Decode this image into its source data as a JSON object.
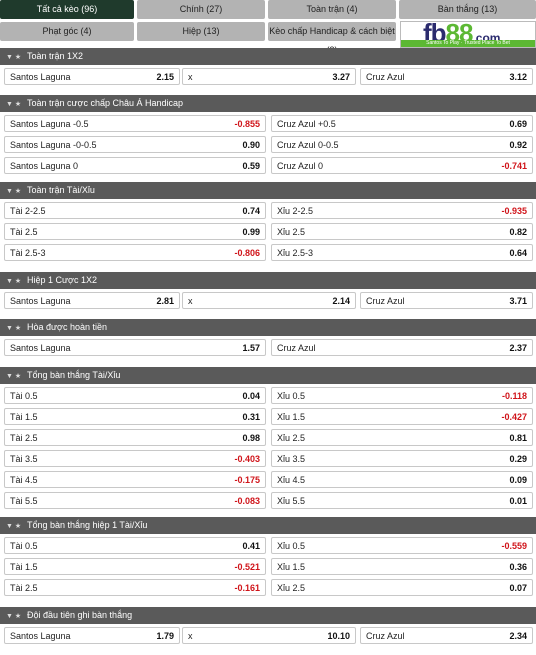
{
  "tabs": [
    {
      "label": "Tất cả kèo (96)",
      "active": true
    },
    {
      "label": "Chính (27)",
      "active": false
    },
    {
      "label": "Toàn trận (4)",
      "active": false
    },
    {
      "label": "Bàn thắng (13)",
      "active": false
    },
    {
      "label": "Phạt góc (4)",
      "active": false
    },
    {
      "label": "Hiệp (13)",
      "active": false
    },
    {
      "label": "Kèo chấp Handicap & cách biệt (3)",
      "active": false
    }
  ],
  "logo": {
    "brand_a": "fb",
    "brand_b": "88",
    "suffix": ".com",
    "tagline": "Santos To Play · Trusted Place To Bet"
  },
  "sections": [
    {
      "title": "Toàn trận 1X2",
      "rows": [
        [
          {
            "label": "Santos Laguna",
            "odd": "2.15"
          },
          {
            "label": "x",
            "odd": "3.27"
          },
          {
            "label": "Cruz Azul",
            "odd": "3.12"
          }
        ]
      ]
    },
    {
      "title": "Toàn trận cược chấp Châu Á Handicap",
      "rows": [
        [
          {
            "label": "Santos Laguna -0.5",
            "odd": "-0.855"
          },
          {
            "label": "Cruz Azul +0.5",
            "odd": "0.69"
          }
        ],
        [
          {
            "label": "Santos Laguna -0-0.5",
            "odd": "0.90"
          },
          {
            "label": "Cruz Azul 0-0.5",
            "odd": "0.92"
          }
        ],
        [
          {
            "label": "Santos Laguna 0",
            "odd": "0.59"
          },
          {
            "label": "Cruz Azul 0",
            "odd": "-0.741"
          }
        ]
      ]
    },
    {
      "title": "Toàn trận Tài/Xỉu",
      "rows": [
        [
          {
            "label": "Tài 2-2.5",
            "odd": "0.74"
          },
          {
            "label": "Xỉu 2-2.5",
            "odd": "-0.935"
          }
        ],
        [
          {
            "label": "Tài 2.5",
            "odd": "0.99"
          },
          {
            "label": "Xỉu 2.5",
            "odd": "0.82"
          }
        ],
        [
          {
            "label": "Tài 2.5-3",
            "odd": "-0.806"
          },
          {
            "label": "Xỉu 2.5-3",
            "odd": "0.64"
          }
        ]
      ]
    },
    {
      "title": "Hiệp 1 Cược 1X2",
      "rows": [
        [
          {
            "label": "Santos Laguna",
            "odd": "2.81"
          },
          {
            "label": "x",
            "odd": "2.14"
          },
          {
            "label": "Cruz Azul",
            "odd": "3.71"
          }
        ]
      ]
    },
    {
      "title": "Hòa được hoàn tiền",
      "rows": [
        [
          {
            "label": "Santos Laguna",
            "odd": "1.57"
          },
          {
            "label": "Cruz Azul",
            "odd": "2.37"
          }
        ]
      ]
    },
    {
      "title": "Tổng bàn thắng Tài/Xỉu",
      "rows": [
        [
          {
            "label": "Tài 0.5",
            "odd": "0.04"
          },
          {
            "label": "Xỉu 0.5",
            "odd": "-0.118"
          }
        ],
        [
          {
            "label": "Tài 1.5",
            "odd": "0.31"
          },
          {
            "label": "Xỉu 1.5",
            "odd": "-0.427"
          }
        ],
        [
          {
            "label": "Tài 2.5",
            "odd": "0.98"
          },
          {
            "label": "Xỉu 2.5",
            "odd": "0.81"
          }
        ],
        [
          {
            "label": "Tài 3.5",
            "odd": "-0.403"
          },
          {
            "label": "Xỉu 3.5",
            "odd": "0.29"
          }
        ],
        [
          {
            "label": "Tài 4.5",
            "odd": "-0.175"
          },
          {
            "label": "Xỉu 4.5",
            "odd": "0.09"
          }
        ],
        [
          {
            "label": "Tài 5.5",
            "odd": "-0.083"
          },
          {
            "label": "Xỉu 5.5",
            "odd": "0.01"
          }
        ]
      ]
    },
    {
      "title": "Tổng bàn thắng hiệp 1 Tài/Xỉu",
      "rows": [
        [
          {
            "label": "Tài 0.5",
            "odd": "0.41"
          },
          {
            "label": "Xỉu 0.5",
            "odd": "-0.559"
          }
        ],
        [
          {
            "label": "Tài 1.5",
            "odd": "-0.521"
          },
          {
            "label": "Xỉu 1.5",
            "odd": "0.36"
          }
        ],
        [
          {
            "label": "Tài 2.5",
            "odd": "-0.161"
          },
          {
            "label": "Xỉu 2.5",
            "odd": "0.07"
          }
        ]
      ]
    },
    {
      "title": "Đội đầu tiên ghi bàn thắng",
      "rows": [
        [
          {
            "label": "Santos Laguna",
            "odd": "1.79"
          },
          {
            "label": "x",
            "odd": "10.10"
          },
          {
            "label": "Cruz Azul",
            "odd": "2.34"
          }
        ]
      ]
    }
  ],
  "colors": {
    "header_bg": "#5a5a5a",
    "tab_active": "#1f3a2c",
    "tab_bg": "#b3b3b3",
    "negative": "#d0141a"
  }
}
